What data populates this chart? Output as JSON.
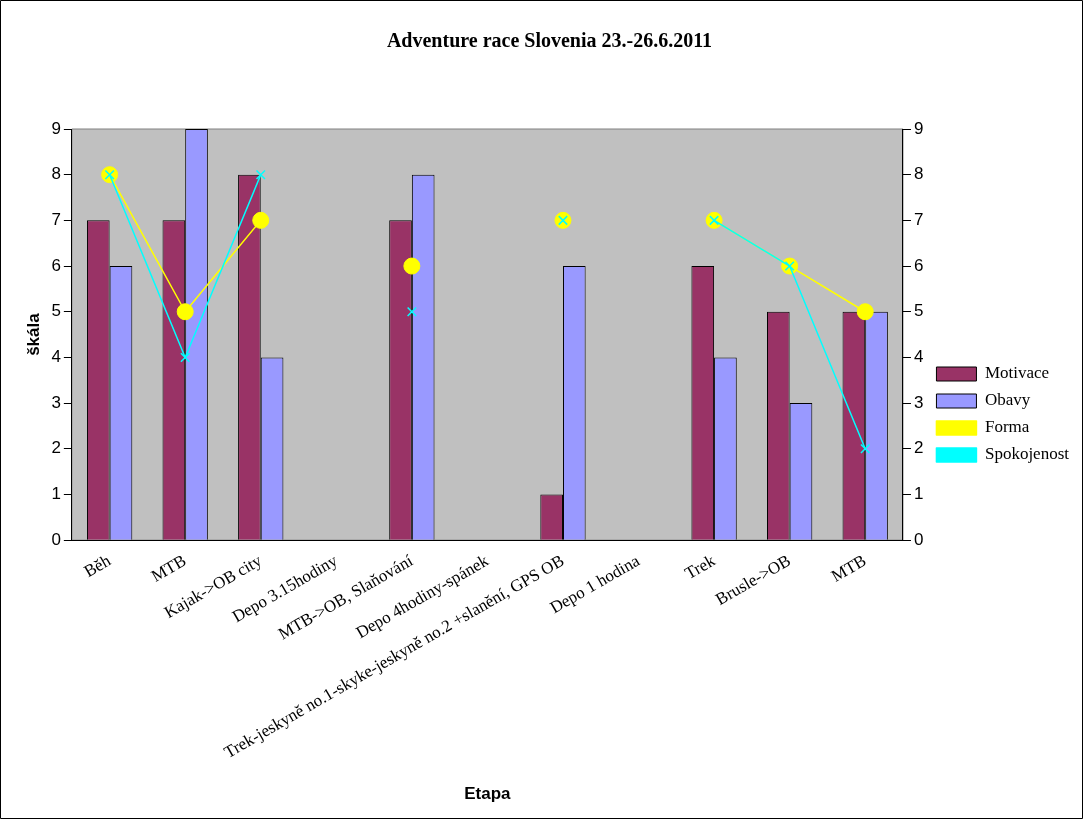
{
  "chart_data": {
    "type": "bar",
    "title": "Adventure race Slovenia 23.-26.6.2011",
    "xlabel": "Etapa",
    "ylabel": "škála",
    "categories": [
      "Běh",
      "MTB",
      "Kajak->OB city",
      "Depo 3.15hodiny",
      "MTB->OB, Slaňování",
      "Depo 4hodiny-spánek",
      "Trek-jeskyně no.1-skyke-jeskyně no.2 +slanění, GPS OB",
      "Depo 1 hodina",
      "Trek",
      "Brusle->OB",
      "MTB"
    ],
    "series": [
      {
        "name": "Motivace",
        "color": "#993366",
        "values": [
          7,
          7,
          8,
          null,
          7,
          null,
          1,
          null,
          6,
          5,
          5
        ]
      },
      {
        "name": "Obavy",
        "color": "#9999ff",
        "values": [
          6,
          9,
          4,
          null,
          8,
          null,
          6,
          null,
          4,
          3,
          5
        ]
      },
      {
        "name": "Forma",
        "type": "line",
        "marker": "circle",
        "color": "#ffff00",
        "values": [
          8,
          5,
          7,
          null,
          6,
          null,
          7,
          null,
          7,
          6,
          5
        ]
      },
      {
        "name": "Spokojenost",
        "type": "line",
        "marker": "cross",
        "color": "#00ffff",
        "values": [
          8,
          4,
          8,
          null,
          5,
          null,
          7,
          null,
          7,
          6,
          2
        ]
      }
    ],
    "ylim": [
      0,
      9
    ],
    "yticks": [
      0,
      1,
      2,
      3,
      4,
      5,
      6,
      7,
      8,
      9
    ],
    "y2lim": [
      0,
      9
    ],
    "y2ticks": [
      0,
      1,
      2,
      3,
      4,
      5,
      6,
      7,
      8,
      9
    ],
    "grid": false,
    "legend": "right"
  }
}
